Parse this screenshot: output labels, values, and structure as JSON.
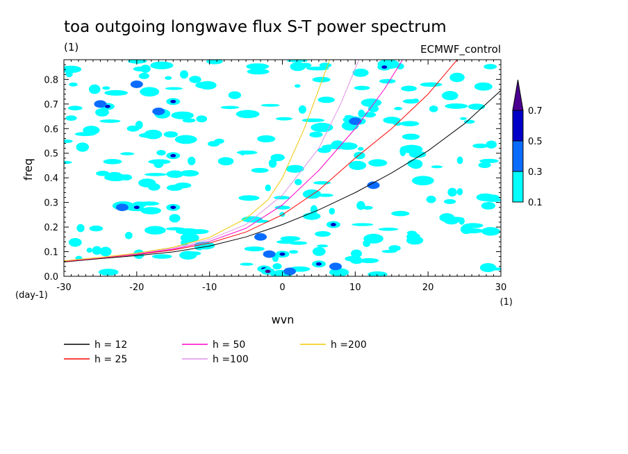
{
  "chart_data": {
    "type": "heatmap",
    "title": "toa outgoing longwave flux S-T power spectrum",
    "subtitle_left": "(1)",
    "subtitle_right": "ECMWF_control",
    "xlabel": "wvn",
    "ylabel": "freq",
    "x_unit_label": "(1)",
    "y_unit_label": "(day-1)",
    "xlim": [
      -30,
      30
    ],
    "ylim": [
      0,
      0.88
    ],
    "x_ticks": [
      -30,
      -20,
      -10,
      0,
      10,
      20,
      30
    ],
    "x_tick_labels": [
      "-30",
      "-20",
      "-10",
      "0",
      "10",
      "20",
      "30"
    ],
    "y_ticks": [
      0.0,
      0.1,
      0.2,
      0.3,
      0.4,
      0.5,
      0.6,
      0.7,
      0.8
    ],
    "y_tick_labels": [
      "0.0",
      "0.1",
      "0.2",
      "0.3",
      "0.4",
      "0.5",
      "0.6",
      "0.7",
      "0.8"
    ],
    "colorbar": {
      "levels": [
        0.1,
        0.3,
        0.5,
        0.7
      ],
      "level_labels": [
        "0.1",
        "0.3",
        "0.5",
        "0.7"
      ],
      "colors": [
        "#00ffff",
        "#0a6cff",
        "#0000c8",
        "#4b0090"
      ]
    },
    "contour_patches": [
      {
        "x": -24,
        "y": 0.69,
        "level": 2
      },
      {
        "x": -25,
        "y": 0.7,
        "level": 1
      },
      {
        "x": -15,
        "y": 0.71,
        "level": 2
      },
      {
        "x": -15,
        "y": 0.49,
        "level": 2
      },
      {
        "x": -17,
        "y": 0.67,
        "level": 1
      },
      {
        "x": -20,
        "y": 0.78,
        "level": 1
      },
      {
        "x": -20,
        "y": 0.28,
        "level": 2
      },
      {
        "x": -15,
        "y": 0.28,
        "level": 2
      },
      {
        "x": -3,
        "y": 0.16,
        "level": 1
      },
      {
        "x": -2.5,
        "y": 0.03,
        "level": 2
      },
      {
        "x": -2,
        "y": 0.02,
        "level": 3
      },
      {
        "x": -1.8,
        "y": 0.09,
        "level": 1
      },
      {
        "x": 0,
        "y": 0.09,
        "level": 2
      },
      {
        "x": 5,
        "y": 0.05,
        "level": 2
      },
      {
        "x": 7,
        "y": 0.21,
        "level": 2
      },
      {
        "x": 10.5,
        "y": 0.63,
        "level": 2
      },
      {
        "x": 10,
        "y": 0.63,
        "level": 1
      },
      {
        "x": 14,
        "y": 0.85,
        "level": 2
      },
      {
        "x": 12.5,
        "y": 0.37,
        "level": 1
      },
      {
        "x": 7.3,
        "y": 0.04,
        "level": 1
      },
      {
        "x": 1,
        "y": 0.02,
        "level": 1
      },
      {
        "x": -22,
        "y": 0.28,
        "level": 1
      }
    ],
    "series": [
      {
        "name": "h = 12",
        "color": "#000000",
        "x": [
          -30,
          -25,
          -20,
          -15,
          -10,
          -5,
          0,
          5,
          10,
          15,
          20,
          25,
          30
        ],
        "y": [
          0.058,
          0.072,
          0.084,
          0.099,
          0.123,
          0.16,
          0.21,
          0.27,
          0.34,
          0.42,
          0.51,
          0.62,
          0.755
        ]
      },
      {
        "name": "h = 25",
        "color": "#ff0000",
        "x": [
          -30,
          -25,
          -20,
          -15,
          -10,
          -5,
          0,
          5,
          10,
          15,
          20,
          24
        ],
        "y": [
          0.06,
          0.074,
          0.088,
          0.107,
          0.135,
          0.18,
          0.25,
          0.35,
          0.48,
          0.6,
          0.74,
          0.88
        ]
      },
      {
        "name": "h = 50",
        "color": "#ff00c8",
        "x": [
          -30,
          -25,
          -20,
          -15,
          -10,
          -5,
          0,
          5,
          10,
          14,
          16.5
        ],
        "y": [
          0.061,
          0.075,
          0.09,
          0.11,
          0.142,
          0.195,
          0.29,
          0.43,
          0.6,
          0.76,
          0.88
        ]
      },
      {
        "name": "h =100",
        "color": "#e090e8",
        "x": [
          -30,
          -25,
          -20,
          -15,
          -10,
          -5,
          0,
          5,
          8,
          10.5
        ],
        "y": [
          0.062,
          0.076,
          0.092,
          0.114,
          0.15,
          0.21,
          0.33,
          0.52,
          0.7,
          0.88
        ]
      },
      {
        "name": "h =200",
        "color": "#f0c800",
        "x": [
          -30,
          -25,
          -20,
          -15,
          -10,
          -5,
          -2,
          0,
          3,
          6.5
        ],
        "y": [
          0.063,
          0.077,
          0.094,
          0.118,
          0.158,
          0.235,
          0.31,
          0.4,
          0.6,
          0.88
        ]
      }
    ],
    "legend_placement": "bottom",
    "grid": false
  }
}
